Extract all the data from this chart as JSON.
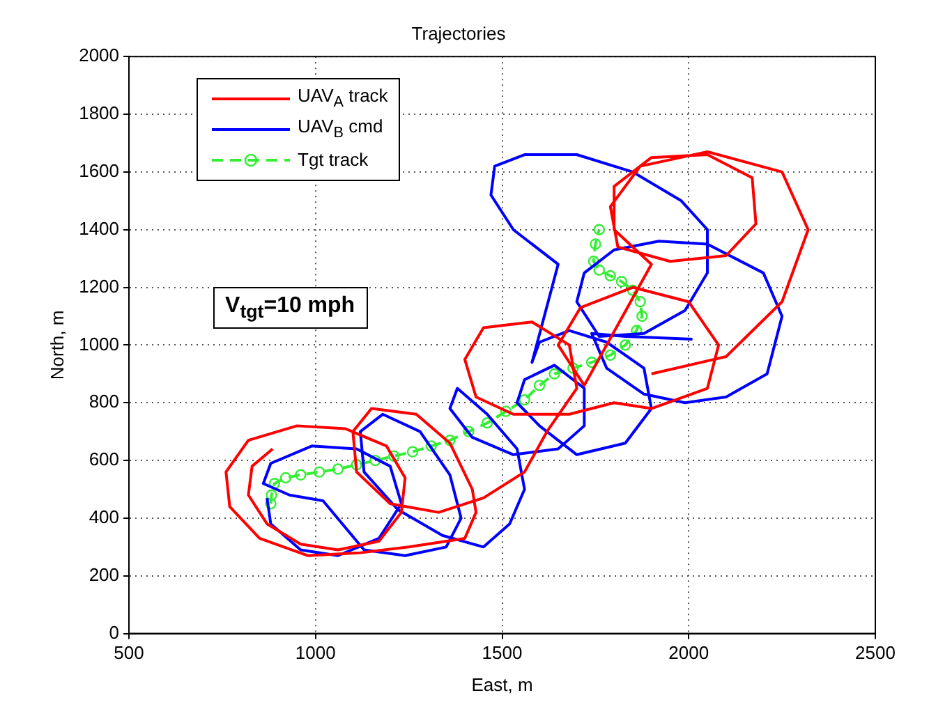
{
  "chart_data": {
    "type": "line",
    "title": "Trajectories",
    "xlabel": "East, m",
    "ylabel": "North, m",
    "xlim": [
      500,
      2500
    ],
    "ylim": [
      0,
      2000
    ],
    "xticks": [
      500,
      1000,
      1500,
      2000,
      2500
    ],
    "yticks": [
      0,
      200,
      400,
      600,
      800,
      1000,
      1200,
      1400,
      1600,
      1800,
      2000
    ],
    "grid": true,
    "legend": "top left",
    "annotations": [
      "V$_{tgt}$=10 mph"
    ],
    "series": [
      {
        "name": "UAV$_{A}$ track",
        "color": "#ff0000",
        "marker": "none",
        "line_style": "solid",
        "x": [
          885,
          830,
          820,
          870,
          960,
          1060,
          1170,
          1230,
          1240,
          1190,
          1080,
          950,
          820,
          760,
          770,
          850,
          980,
          1120,
          1250,
          1400,
          1430,
          1420,
          1360,
          1270,
          1150,
          1100,
          1110,
          1200,
          1330,
          1450,
          1560,
          1620,
          1700,
          1680,
          1580,
          1450,
          1400,
          1430,
          1530,
          1680,
          1800,
          1900,
          2050,
          2080,
          2000,
          1850,
          1710,
          1650,
          1720,
          1900,
          1800,
          1800,
          1900,
          2050,
          2170,
          2180,
          2100,
          1950,
          1810,
          1790,
          1870,
          2050,
          2250,
          2320,
          2250,
          2100,
          1900
        ],
        "values": [
          640,
          580,
          480,
          380,
          310,
          290,
          320,
          420,
          540,
          650,
          710,
          720,
          670,
          560,
          440,
          330,
          270,
          280,
          300,
          330,
          420,
          500,
          660,
          760,
          780,
          700,
          560,
          450,
          420,
          470,
          560,
          700,
          850,
          1000,
          1080,
          1060,
          950,
          820,
          760,
          760,
          800,
          780,
          850,
          1000,
          1150,
          1200,
          1130,
          1000,
          860,
          1280,
          1400,
          1550,
          1650,
          1660,
          1580,
          1420,
          1310,
          1290,
          1340,
          1480,
          1620,
          1670,
          1600,
          1400,
          1150,
          960,
          900
        ]
      },
      {
        "name": "UAV$_{B}$ cmd",
        "color": "#0000ff",
        "marker": "none",
        "line_style": "solid",
        "x": [
          870,
          880,
          960,
          1060,
          1170,
          1230,
          1200,
          1110,
          990,
          880,
          860,
          930,
          1020,
          1130,
          1240,
          1350,
          1390,
          1360,
          1280,
          1180,
          1120,
          1130,
          1220,
          1340,
          1450,
          1520,
          1560,
          1540,
          1460,
          1380,
          1360,
          1420,
          1530,
          1650,
          1720,
          1720,
          1640,
          1560,
          1540,
          1600,
          1700,
          1830,
          1900,
          1880,
          1780,
          1680,
          1600,
          1580,
          1650,
          1530,
          1470,
          1480,
          1560,
          1700,
          1850,
          1980,
          2050,
          2050,
          1990,
          1880,
          1760,
          1700,
          1720,
          1800,
          1920,
          2050,
          2200,
          2250,
          2210,
          2100,
          1990,
          1880,
          1780,
          1740,
          1830,
          2010
        ],
        "values": [
          470,
          380,
          290,
          270,
          330,
          450,
          580,
          640,
          650,
          590,
          520,
          480,
          460,
          290,
          270,
          300,
          400,
          550,
          700,
          760,
          700,
          560,
          430,
          340,
          300,
          380,
          500,
          640,
          760,
          850,
          780,
          680,
          620,
          640,
          720,
          850,
          930,
          880,
          800,
          720,
          620,
          660,
          780,
          920,
          1010,
          1050,
          1010,
          940,
          1280,
          1400,
          1520,
          1620,
          1660,
          1660,
          1600,
          1500,
          1400,
          1250,
          1120,
          1040,
          1030,
          1150,
          1250,
          1330,
          1360,
          1350,
          1250,
          1100,
          900,
          820,
          800,
          830,
          920,
          1040,
          1030,
          1020
        ]
      },
      {
        "name": "Tgt track",
        "color": "#33ee33",
        "marker": "circle",
        "line_style": "dashed",
        "x": [
          880,
          882,
          890,
          920,
          960,
          1010,
          1060,
          1110,
          1160,
          1210,
          1260,
          1310,
          1360,
          1410,
          1460,
          1510,
          1560,
          1600,
          1640,
          1690,
          1740,
          1790,
          1830,
          1860,
          1875,
          1870,
          1850,
          1820,
          1790,
          1760,
          1745,
          1750,
          1760
        ],
        "values": [
          450,
          480,
          520,
          540,
          550,
          560,
          570,
          585,
          600,
          615,
          630,
          650,
          670,
          700,
          730,
          770,
          810,
          860,
          900,
          920,
          940,
          965,
          1000,
          1050,
          1100,
          1150,
          1190,
          1220,
          1240,
          1260,
          1290,
          1350,
          1400
        ]
      }
    ]
  }
}
